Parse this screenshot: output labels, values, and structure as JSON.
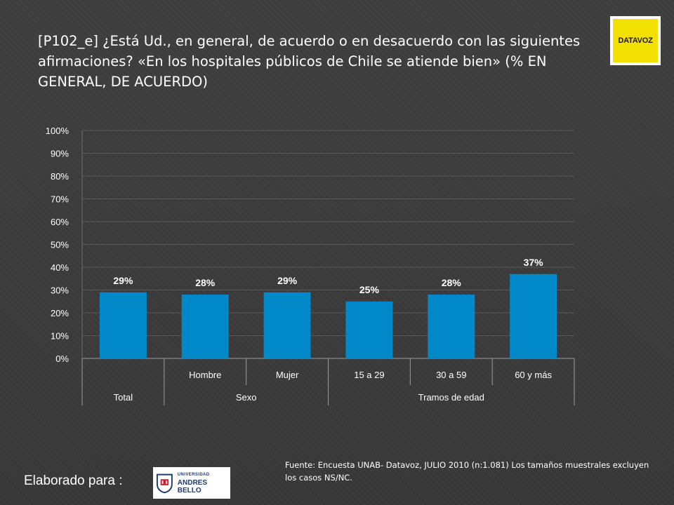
{
  "header": {
    "title": "[P102_e] ¿Está Ud., en general, de acuerdo o en desacuerdo con las siguientes afirmaciones? «En los hospitales públicos de Chile se atiende bien» (% EN GENERAL, DE ACUERDO)",
    "logo_text": "DATAVOZ"
  },
  "footer": {
    "source": "Fuente: Encuesta UNAB- Datavoz, JULIO 2010 (n:1.081) Los tamaños muestrales excluyen los casos NS/NC.",
    "prepared_for": "Elaborado para :",
    "university_small": "UNIVERSIDAD",
    "university_big": "ANDRES BELLO"
  },
  "colors": {
    "bar": "#0088c8",
    "background": "#3d3d3d",
    "text": "#ffffff",
    "logo_yellow": "#f1e000"
  },
  "chart_data": {
    "type": "bar",
    "categories": [
      "",
      "Hombre",
      "Mujer",
      "15 a 29",
      "30 a 59",
      "60 y más"
    ],
    "groups": [
      {
        "label": "Total",
        "span": 1
      },
      {
        "label": "Sexo",
        "span": 2
      },
      {
        "label": "Tramos de edad",
        "span": 3
      }
    ],
    "values": [
      29,
      28,
      29,
      25,
      28,
      37
    ],
    "data_labels": [
      "29%",
      "28%",
      "29%",
      "25%",
      "28%",
      "37%"
    ],
    "ylim": [
      0,
      100
    ],
    "yticks": [
      "0%",
      "10%",
      "20%",
      "30%",
      "40%",
      "50%",
      "60%",
      "70%",
      "80%",
      "90%",
      "100%"
    ],
    "grid": true,
    "title": "",
    "xlabel": "",
    "ylabel": ""
  }
}
